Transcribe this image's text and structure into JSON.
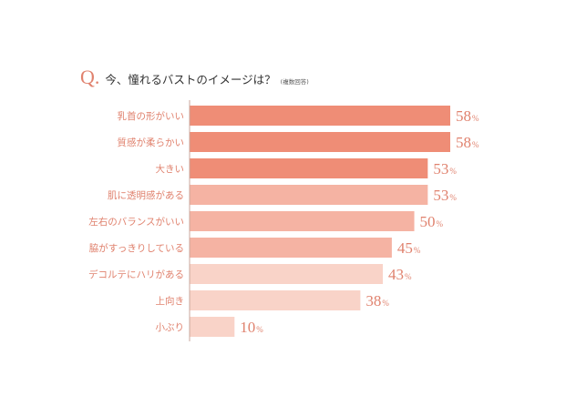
{
  "header": {
    "q_mark": "Q.",
    "question": "今、憧れるバストのイメージは？",
    "note": "(複数回答)"
  },
  "chart_data": {
    "type": "bar",
    "orientation": "horizontal",
    "categories": [
      "乳首の形がいい",
      "質感が柔らかい",
      "大きい",
      "肌に透明感がある",
      "左右のバランスがいい",
      "脇がすっきりしている",
      "デコルテにハリがある",
      "上向き",
      "小ぶり"
    ],
    "values": [
      58,
      58,
      53,
      53,
      50,
      45,
      43,
      38,
      10
    ],
    "value_suffix": "%",
    "xlim": [
      0,
      58
    ],
    "colors": [
      "#ef8d76",
      "#ef8d76",
      "#ef8d76",
      "#f5b3a3",
      "#f5b3a3",
      "#f5b3a3",
      "#f9d3c8",
      "#f9d3c8",
      "#f9d3c8"
    ],
    "label_color": "#e0826e",
    "axis_color": "#c9a79d",
    "grid": false
  }
}
